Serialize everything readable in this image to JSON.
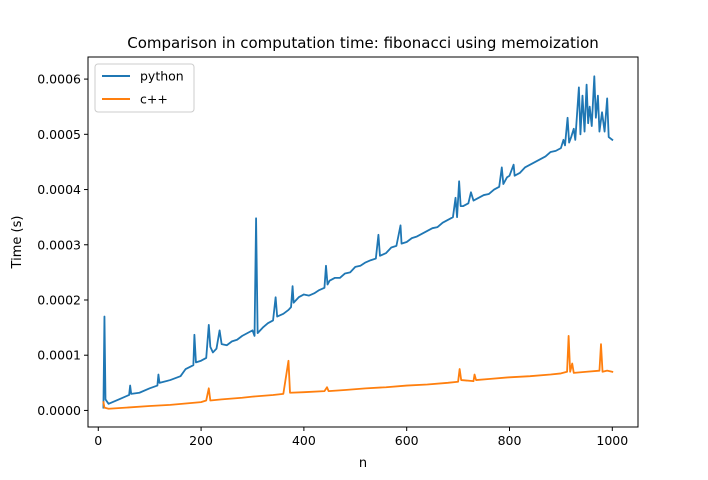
{
  "chart_data": {
    "type": "line",
    "title": "Comparison in computation time: fibonacci using memoization",
    "xlabel": "n",
    "ylabel": "Time (s)",
    "xlim": [
      -20,
      1050
    ],
    "ylim": [
      -3e-05,
      0.00064
    ],
    "xticks": [
      0,
      200,
      400,
      600,
      800,
      1000
    ],
    "xtick_labels": [
      "0",
      "200",
      "400",
      "600",
      "800",
      "1000"
    ],
    "yticks": [
      0.0,
      0.0001,
      0.0002,
      0.0003,
      0.0004,
      0.0005,
      0.0006
    ],
    "ytick_labels": [
      "0.0000",
      "0.0001",
      "0.0002",
      "0.0003",
      "0.0004",
      "0.0005",
      "0.0006"
    ],
    "grid": false,
    "legend_position": "upper-left",
    "series": [
      {
        "name": "python",
        "color": "#1f77b4",
        "points": [
          [
            10,
            5e-06
          ],
          [
            12,
            0.00017
          ],
          [
            14,
            2e-05
          ],
          [
            20,
            1.2e-05
          ],
          [
            40,
            2e-05
          ],
          [
            60,
            2.8e-05
          ],
          [
            62,
            4.5e-05
          ],
          [
            64,
            3e-05
          ],
          [
            80,
            3.2e-05
          ],
          [
            100,
            4e-05
          ],
          [
            115,
            4.5e-05
          ],
          [
            117,
            6.5e-05
          ],
          [
            119,
            5e-05
          ],
          [
            140,
            5.5e-05
          ],
          [
            160,
            6.2e-05
          ],
          [
            170,
            7.5e-05
          ],
          [
            185,
            8.2e-05
          ],
          [
            187,
            0.000137
          ],
          [
            190,
            8.7e-05
          ],
          [
            200,
            9e-05
          ],
          [
            210,
            9.5e-05
          ],
          [
            215,
            0.000155
          ],
          [
            218,
            0.000115
          ],
          [
            223,
            0.000105
          ],
          [
            230,
            0.000112
          ],
          [
            236,
            0.000145
          ],
          [
            240,
            0.00012
          ],
          [
            250,
            0.000118
          ],
          [
            260,
            0.000125
          ],
          [
            270,
            0.000128
          ],
          [
            280,
            0.000135
          ],
          [
            290,
            0.00014
          ],
          [
            300,
            0.000145
          ],
          [
            304,
            0.000135
          ],
          [
            307,
            0.000348
          ],
          [
            310,
            0.00014
          ],
          [
            320,
            0.00015
          ],
          [
            330,
            0.000158
          ],
          [
            340,
            0.000163
          ],
          [
            345,
            0.000205
          ],
          [
            348,
            0.00017
          ],
          [
            360,
            0.000175
          ],
          [
            370,
            0.000182
          ],
          [
            375,
            0.000187
          ],
          [
            378,
            0.000225
          ],
          [
            380,
            0.000195
          ],
          [
            390,
            0.000205
          ],
          [
            400,
            0.00021
          ],
          [
            410,
            0.000208
          ],
          [
            420,
            0.000212
          ],
          [
            430,
            0.000218
          ],
          [
            440,
            0.000222
          ],
          [
            443,
            0.000262
          ],
          [
            446,
            0.000228
          ],
          [
            450,
            0.000235
          ],
          [
            460,
            0.00024
          ],
          [
            470,
            0.00024
          ],
          [
            480,
            0.000248
          ],
          [
            490,
            0.00025
          ],
          [
            500,
            0.00026
          ],
          [
            510,
            0.000262
          ],
          [
            520,
            0.000268
          ],
          [
            530,
            0.000272
          ],
          [
            540,
            0.000275
          ],
          [
            545,
            0.000318
          ],
          [
            548,
            0.00028
          ],
          [
            560,
            0.000285
          ],
          [
            570,
            0.000295
          ],
          [
            580,
            0.000298
          ],
          [
            588,
            0.000335
          ],
          [
            590,
            0.000302
          ],
          [
            600,
            0.000305
          ],
          [
            610,
            0.000312
          ],
          [
            620,
            0.000315
          ],
          [
            630,
            0.00032
          ],
          [
            640,
            0.000325
          ],
          [
            650,
            0.00033
          ],
          [
            660,
            0.000332
          ],
          [
            670,
            0.00034
          ],
          [
            680,
            0.000345
          ],
          [
            690,
            0.00035
          ],
          [
            695,
            0.000385
          ],
          [
            698,
            0.00035
          ],
          [
            702,
            0.000415
          ],
          [
            705,
            0.00037
          ],
          [
            710,
            0.00037
          ],
          [
            720,
            0.000375
          ],
          [
            725,
            0.000395
          ],
          [
            730,
            0.00038
          ],
          [
            740,
            0.000385
          ],
          [
            750,
            0.00039
          ],
          [
            760,
            0.000392
          ],
          [
            770,
            0.0004
          ],
          [
            780,
            0.000405
          ],
          [
            785,
            0.00044
          ],
          [
            788,
            0.00041
          ],
          [
            795,
            0.000422
          ],
          [
            800,
            0.000425
          ],
          [
            808,
            0.000445
          ],
          [
            810,
            0.000425
          ],
          [
            820,
            0.00043
          ],
          [
            830,
            0.00044
          ],
          [
            840,
            0.000445
          ],
          [
            850,
            0.00045
          ],
          [
            860,
            0.000455
          ],
          [
            870,
            0.00046
          ],
          [
            880,
            0.000468
          ],
          [
            890,
            0.00047
          ],
          [
            900,
            0.000475
          ],
          [
            905,
            0.00049
          ],
          [
            908,
            0.00048
          ],
          [
            913,
            0.00053
          ],
          [
            916,
            0.000485
          ],
          [
            920,
            0.000495
          ],
          [
            925,
            0.00051
          ],
          [
            928,
            0.00049
          ],
          [
            935,
            0.000585
          ],
          [
            938,
            0.0005
          ],
          [
            942,
            0.00057
          ],
          [
            946,
            0.000505
          ],
          [
            950,
            0.00059
          ],
          [
            953,
            0.00052
          ],
          [
            956,
            0.00055
          ],
          [
            960,
            0.000515
          ],
          [
            965,
            0.000605
          ],
          [
            968,
            0.00053
          ],
          [
            972,
            0.00057
          ],
          [
            975,
            0.000505
          ],
          [
            980,
            0.00054
          ],
          [
            985,
            0.000505
          ],
          [
            990,
            0.000565
          ],
          [
            993,
            0.000495
          ],
          [
            1000,
            0.00049
          ]
        ]
      },
      {
        "name": "c++",
        "color": "#ff7f0e",
        "points": [
          [
            10,
            1.5e-05
          ],
          [
            12,
            5e-06
          ],
          [
            20,
            3e-06
          ],
          [
            100,
            8e-06
          ],
          [
            140,
            1e-05
          ],
          [
            200,
            1.5e-05
          ],
          [
            210,
            1.8e-05
          ],
          [
            215,
            4e-05
          ],
          [
            218,
            1.8e-05
          ],
          [
            240,
            2e-05
          ],
          [
            280,
            2.3e-05
          ],
          [
            300,
            2.5e-05
          ],
          [
            340,
            2.8e-05
          ],
          [
            360,
            3e-05
          ],
          [
            370,
            9e-05
          ],
          [
            373,
            3.2e-05
          ],
          [
            400,
            3.3e-05
          ],
          [
            440,
            3.5e-05
          ],
          [
            445,
            4.2e-05
          ],
          [
            448,
            3.5e-05
          ],
          [
            480,
            3.7e-05
          ],
          [
            520,
            4e-05
          ],
          [
            560,
            4.2e-05
          ],
          [
            600,
            4.5e-05
          ],
          [
            640,
            4.7e-05
          ],
          [
            680,
            5e-05
          ],
          [
            700,
            5.2e-05
          ],
          [
            703,
            7.5e-05
          ],
          [
            706,
            5.5e-05
          ],
          [
            730,
            5.3e-05
          ],
          [
            732,
            6.5e-05
          ],
          [
            735,
            5.5e-05
          ],
          [
            760,
            5.7e-05
          ],
          [
            800,
            6e-05
          ],
          [
            840,
            6.2e-05
          ],
          [
            880,
            6.5e-05
          ],
          [
            900,
            6.7e-05
          ],
          [
            912,
            7e-05
          ],
          [
            915,
            0.000135
          ],
          [
            918,
            7e-05
          ],
          [
            922,
            8.5e-05
          ],
          [
            925,
            6.8e-05
          ],
          [
            950,
            7e-05
          ],
          [
            975,
            7.2e-05
          ],
          [
            978,
            0.00012
          ],
          [
            981,
            7e-05
          ],
          [
            990,
            7.2e-05
          ],
          [
            1000,
            7e-05
          ]
        ]
      }
    ]
  }
}
